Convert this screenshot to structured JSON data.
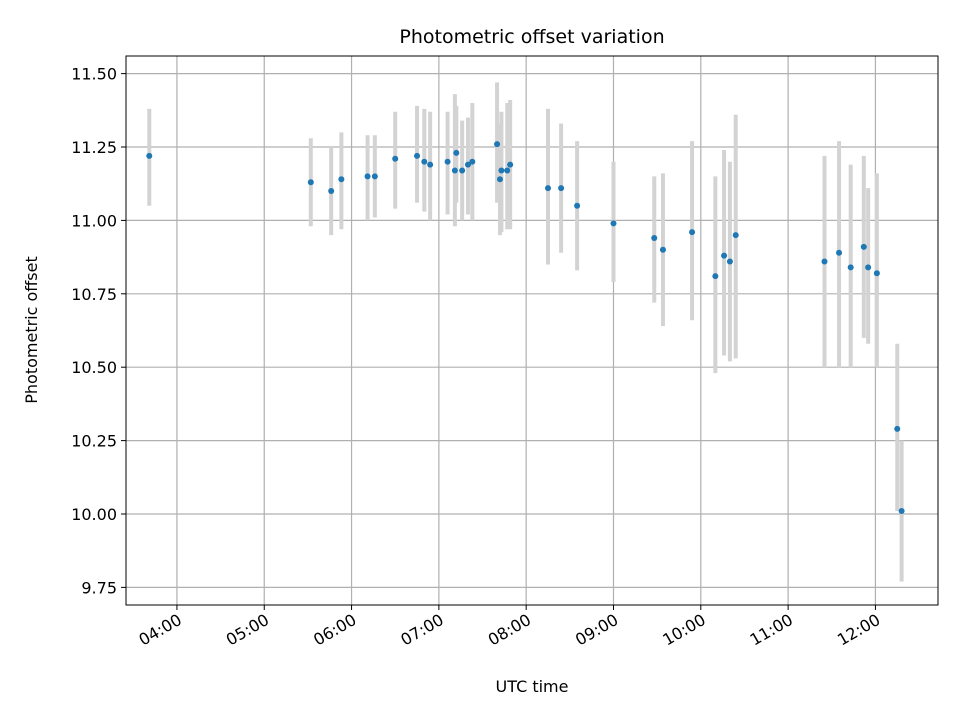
{
  "chart_data": {
    "type": "scatter",
    "title": "Photometric offset variation",
    "xlabel": "UTC time",
    "ylabel": "Photometric offset",
    "x_ticks": [
      "04:00",
      "05:00",
      "06:00",
      "07:00",
      "08:00",
      "09:00",
      "10:00",
      "11:00",
      "12:00"
    ],
    "y_ticks": [
      "9.75",
      "10.00",
      "10.25",
      "10.50",
      "10.75",
      "11.00",
      "11.25",
      "11.50"
    ],
    "xlim": [
      "03:25",
      "12:43"
    ],
    "ylim": [
      9.69,
      11.56
    ],
    "grid": true,
    "marker_color": "#1f77b4",
    "errorbar_color": "#d3d3d3",
    "points": [
      {
        "x": "03:41",
        "y": 11.22,
        "low": 11.05,
        "high": 11.38
      },
      {
        "x": "05:32",
        "y": 11.13,
        "low": 10.98,
        "high": 11.28
      },
      {
        "x": "05:46",
        "y": 11.1,
        "low": 10.95,
        "high": 11.25
      },
      {
        "x": "05:53",
        "y": 11.14,
        "low": 10.97,
        "high": 11.3
      },
      {
        "x": "06:11",
        "y": 11.15,
        "low": 11.0,
        "high": 11.29
      },
      {
        "x": "06:16",
        "y": 11.15,
        "low": 11.01,
        "high": 11.29
      },
      {
        "x": "06:30",
        "y": 11.21,
        "low": 11.04,
        "high": 11.37
      },
      {
        "x": "06:45",
        "y": 11.22,
        "low": 11.06,
        "high": 11.39
      },
      {
        "x": "06:50",
        "y": 11.2,
        "low": 11.03,
        "high": 11.38
      },
      {
        "x": "06:54",
        "y": 11.19,
        "low": 11.0,
        "high": 11.37
      },
      {
        "x": "07:06",
        "y": 11.2,
        "low": 11.02,
        "high": 11.37
      },
      {
        "x": "07:11",
        "y": 11.17,
        "low": 10.98,
        "high": 11.43
      },
      {
        "x": "07:12",
        "y": 11.23,
        "low": 11.06,
        "high": 11.39
      },
      {
        "x": "07:16",
        "y": 11.17,
        "low": 11.0,
        "high": 11.34
      },
      {
        "x": "07:20",
        "y": 11.19,
        "low": 11.02,
        "high": 11.35
      },
      {
        "x": "07:23",
        "y": 11.2,
        "low": 11.0,
        "high": 11.4
      },
      {
        "x": "07:40",
        "y": 11.26,
        "low": 11.06,
        "high": 11.47
      },
      {
        "x": "07:42",
        "y": 11.14,
        "low": 10.95,
        "high": 11.33
      },
      {
        "x": "07:43",
        "y": 11.17,
        "low": 10.96,
        "high": 11.37
      },
      {
        "x": "07:47",
        "y": 11.17,
        "low": 10.97,
        "high": 11.4
      },
      {
        "x": "07:49",
        "y": 11.19,
        "low": 10.97,
        "high": 11.41
      },
      {
        "x": "08:15",
        "y": 11.11,
        "low": 10.85,
        "high": 11.38
      },
      {
        "x": "08:24",
        "y": 11.11,
        "low": 10.89,
        "high": 11.33
      },
      {
        "x": "08:35",
        "y": 11.05,
        "low": 10.83,
        "high": 11.27
      },
      {
        "x": "09:00",
        "y": 10.99,
        "low": 10.79,
        "high": 11.2
      },
      {
        "x": "09:28",
        "y": 10.94,
        "low": 10.72,
        "high": 11.15
      },
      {
        "x": "09:34",
        "y": 10.9,
        "low": 10.64,
        "high": 11.16
      },
      {
        "x": "09:54",
        "y": 10.96,
        "low": 10.66,
        "high": 11.27
      },
      {
        "x": "10:10",
        "y": 10.81,
        "low": 10.48,
        "high": 11.15
      },
      {
        "x": "10:16",
        "y": 10.88,
        "low": 10.54,
        "high": 11.24
      },
      {
        "x": "10:20",
        "y": 10.86,
        "low": 10.52,
        "high": 11.2
      },
      {
        "x": "10:24",
        "y": 10.95,
        "low": 10.53,
        "high": 11.36
      },
      {
        "x": "11:25",
        "y": 10.86,
        "low": 10.5,
        "high": 11.22
      },
      {
        "x": "11:35",
        "y": 10.89,
        "low": 10.5,
        "high": 11.27
      },
      {
        "x": "11:43",
        "y": 10.84,
        "low": 10.5,
        "high": 11.19
      },
      {
        "x": "11:52",
        "y": 10.91,
        "low": 10.6,
        "high": 11.22
      },
      {
        "x": "11:55",
        "y": 10.84,
        "low": 10.58,
        "high": 11.11
      },
      {
        "x": "12:01",
        "y": 10.82,
        "low": 10.5,
        "high": 11.16
      },
      {
        "x": "12:15",
        "y": 10.29,
        "low": 10.01,
        "high": 10.58
      },
      {
        "x": "12:18",
        "y": 10.01,
        "low": 9.77,
        "high": 10.25
      }
    ]
  }
}
